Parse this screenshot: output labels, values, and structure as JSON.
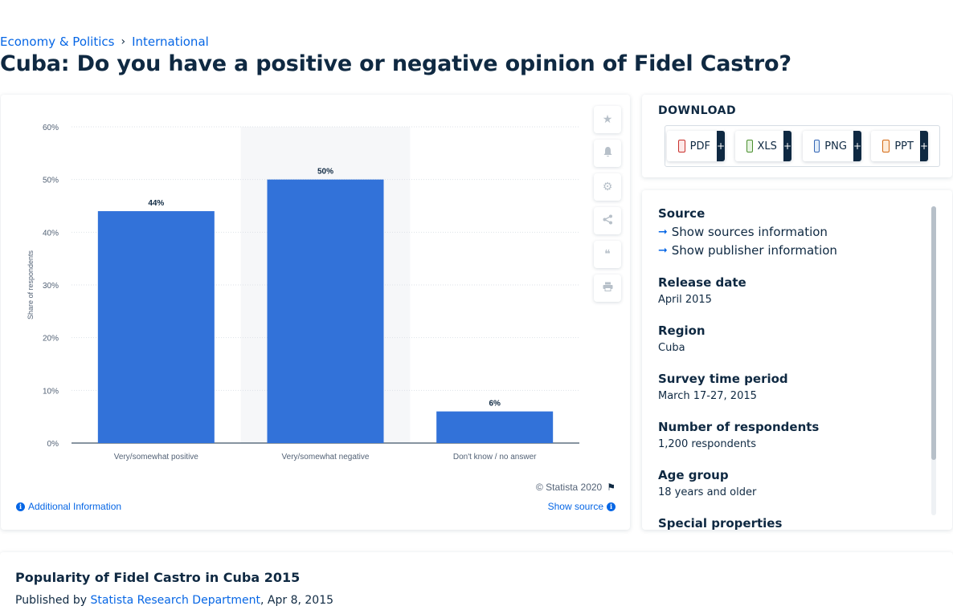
{
  "breadcrumb": {
    "item1": "Economy & Politics",
    "separator": "›",
    "item2": "International"
  },
  "page_title": "Cuba: Do you have a positive or negative opinion of Fidel Castro?",
  "chart": {
    "ylabel": "Share of respondents",
    "copyright": "© Statista 2020",
    "additional_info": "Additional Information",
    "show_source": "Show source"
  },
  "chart_data": {
    "type": "bar",
    "categories": [
      "Very/somewhat positive",
      "Very/somewhat negative",
      "Don't know / no answer"
    ],
    "values": [
      44,
      50,
      6
    ],
    "value_labels": [
      "44%",
      "50%",
      "6%"
    ],
    "ylabel": "Share of respondents",
    "xlabel": "",
    "ylim": [
      0,
      60
    ],
    "yticks": [
      0,
      10,
      20,
      30,
      40,
      50,
      60
    ],
    "ytick_labels": [
      "0%",
      "10%",
      "20%",
      "30%",
      "40%",
      "50%",
      "60%"
    ],
    "bar_color": "#3272d9",
    "grid": true,
    "highlighted_category_index": 1
  },
  "tools": [
    {
      "name": "favorite-icon",
      "glyph": "★"
    },
    {
      "name": "notification-icon",
      "glyph": "🔔"
    },
    {
      "name": "settings-icon",
      "glyph": "⚙"
    },
    {
      "name": "share-icon",
      "glyph": "⤴"
    },
    {
      "name": "cite-icon",
      "glyph": "❝"
    },
    {
      "name": "print-icon",
      "glyph": "⎙"
    }
  ],
  "download": {
    "title": "DOWNLOAD",
    "buttons": [
      {
        "label": "PDF",
        "plus": "+"
      },
      {
        "label": "XLS",
        "plus": "+"
      },
      {
        "label": "PNG",
        "plus": "+"
      },
      {
        "label": "PPT",
        "plus": "+"
      }
    ]
  },
  "info": {
    "source_label": "Source",
    "show_sources": "Show sources information",
    "show_publisher": "Show publisher information",
    "release_date_label": "Release date",
    "release_date": "April 2015",
    "region_label": "Region",
    "region": "Cuba",
    "survey_period_label": "Survey time period",
    "survey_period": "March 17-27, 2015",
    "respondents_label": "Number of respondents",
    "respondents": "1,200 respondents",
    "age_group_label": "Age group",
    "age_group": "18 years and older",
    "special_label": "Special properties"
  },
  "bottom": {
    "title": "Popularity of Fidel Castro in Cuba 2015",
    "published_by": "Published by",
    "publisher": "Statista Research Department",
    "date": ", Apr 8, 2015"
  }
}
